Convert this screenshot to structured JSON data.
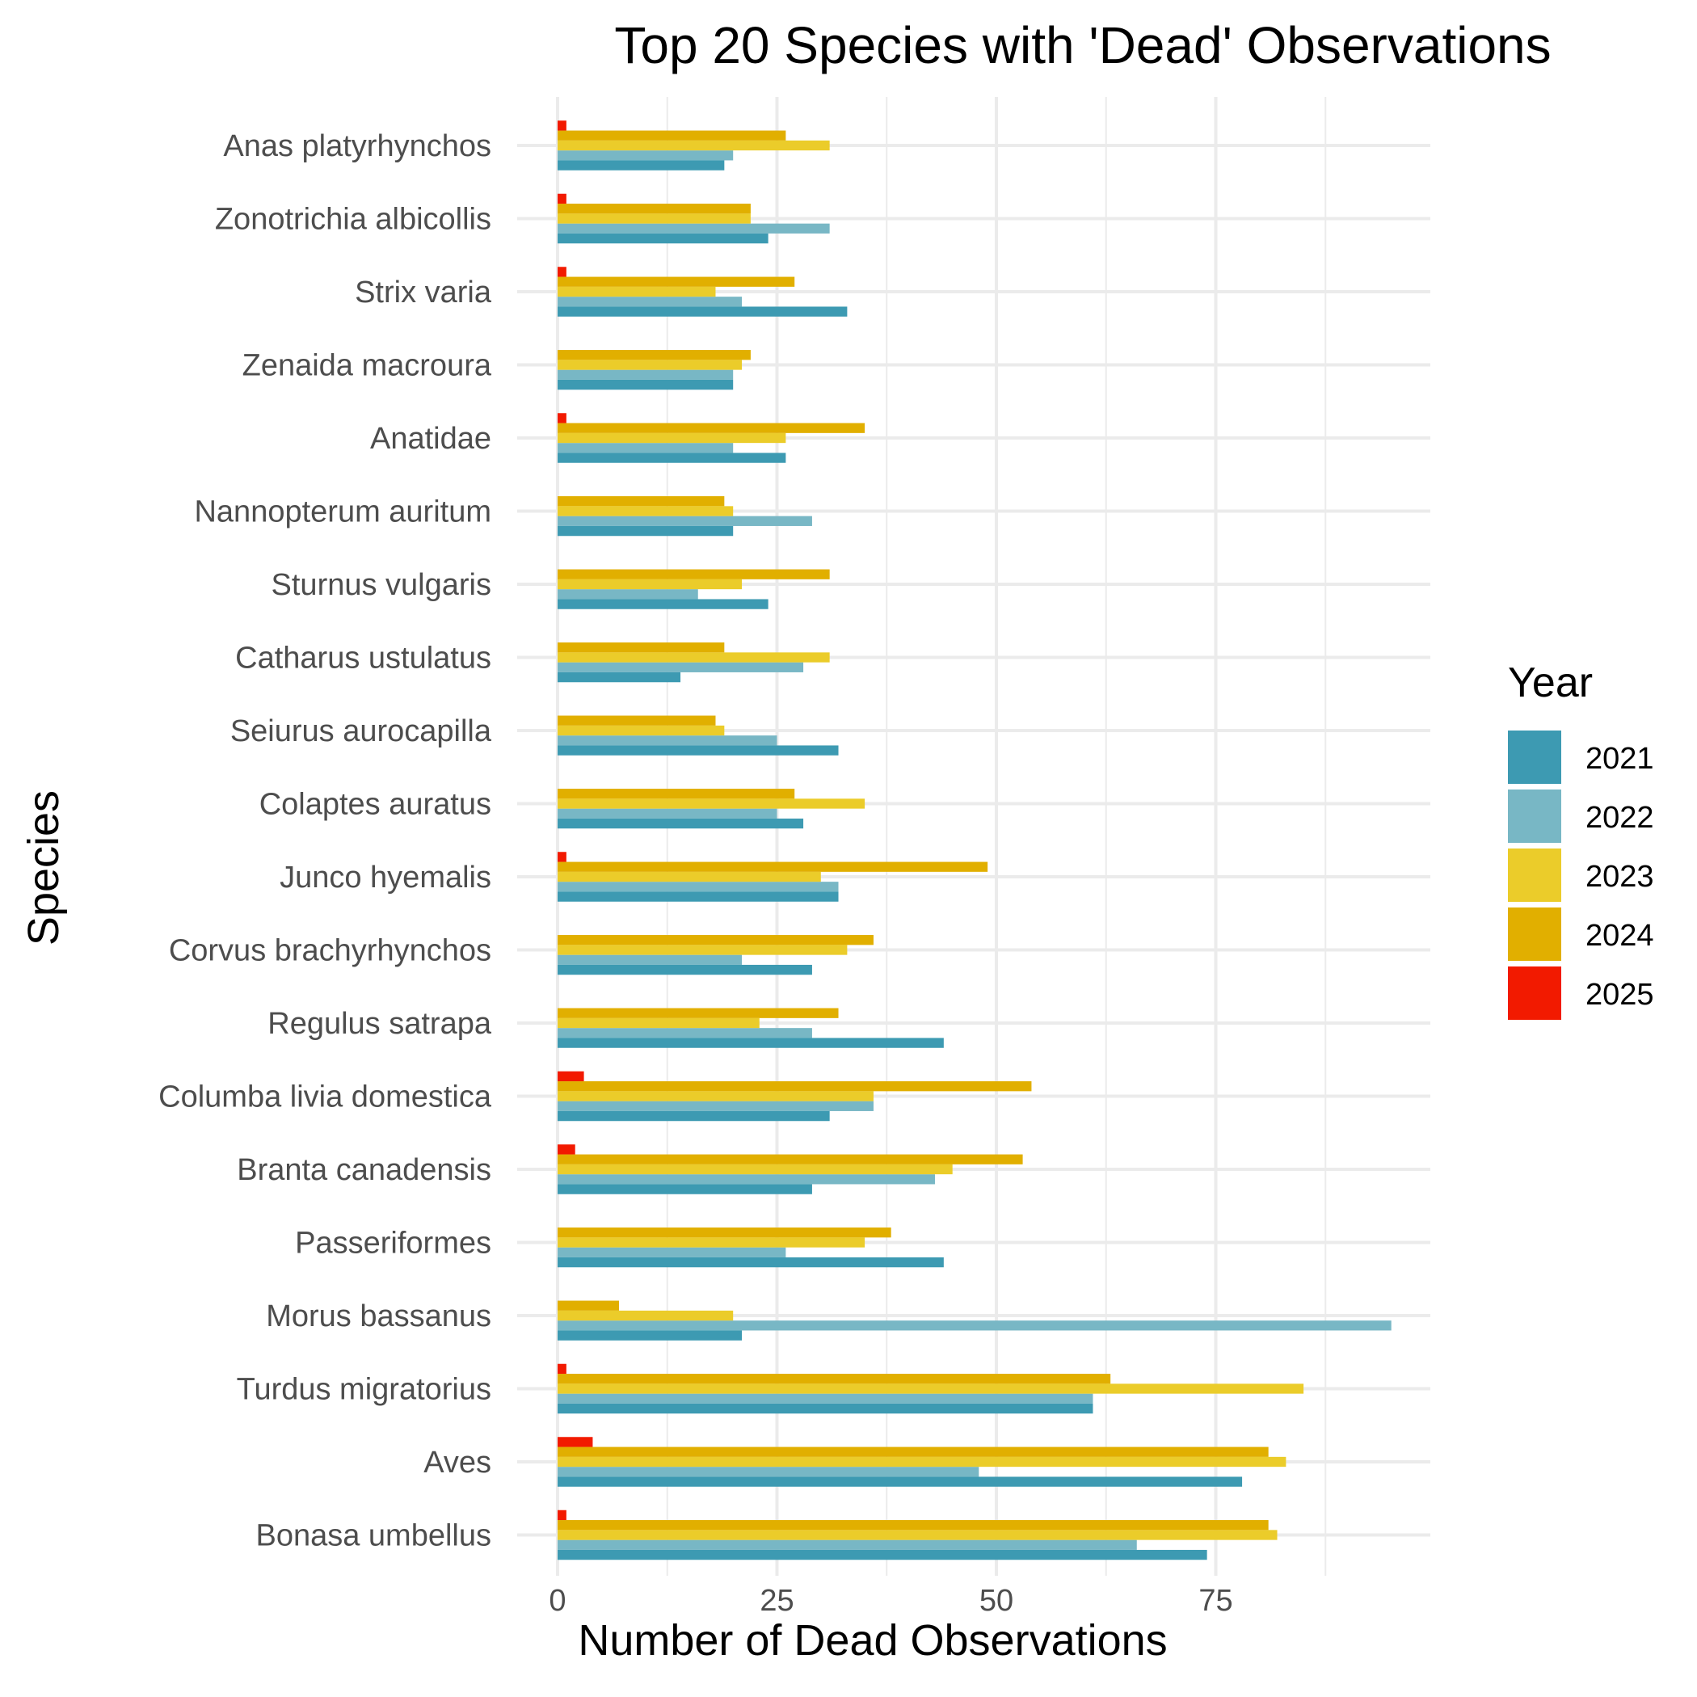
{
  "chart_data": {
    "type": "bar",
    "orientation": "horizontal",
    "title": "Top 20 Species with 'Dead' Observations",
    "xlabel": "Number of Dead Observations",
    "ylabel": "Species",
    "xlim": [
      0,
      100
    ],
    "xticks": [
      0,
      25,
      50,
      75
    ],
    "grid": true,
    "legend": {
      "title": "Year",
      "position": "right"
    },
    "categories": [
      "Anas platyrhynchos",
      "Zonotrichia albicollis",
      "Strix varia",
      "Zenaida macroura",
      "Anatidae",
      "Nannopterum auritum",
      "Sturnus vulgaris",
      "Catharus ustulatus",
      "Seiurus aurocapilla",
      "Colaptes auratus",
      "Junco hyemalis",
      "Corvus brachyrhynchos",
      "Regulus satrapa",
      "Columba livia domestica",
      "Branta canadensis",
      "Passeriformes",
      "Morus bassanus",
      "Turdus migratorius",
      "Aves",
      "Bonasa umbellus"
    ],
    "series": [
      {
        "name": "2021",
        "color": "#3D9AB2",
        "values": [
          19,
          24,
          33,
          20,
          26,
          20,
          24,
          14,
          32,
          28,
          32,
          29,
          44,
          31,
          29,
          44,
          21,
          61,
          78,
          74
        ]
      },
      {
        "name": "2022",
        "color": "#78B7C5",
        "values": [
          20,
          31,
          21,
          20,
          20,
          29,
          16,
          28,
          25,
          25,
          32,
          21,
          29,
          36,
          43,
          26,
          95,
          61,
          48,
          66
        ]
      },
      {
        "name": "2023",
        "color": "#EBCC2A",
        "values": [
          31,
          22,
          18,
          21,
          26,
          20,
          21,
          31,
          19,
          35,
          30,
          33,
          23,
          36,
          45,
          35,
          20,
          85,
          83,
          82
        ]
      },
      {
        "name": "2024",
        "color": "#E1AF00",
        "values": [
          26,
          22,
          27,
          22,
          35,
          19,
          31,
          19,
          18,
          27,
          49,
          36,
          32,
          54,
          53,
          38,
          7,
          63,
          81,
          81
        ]
      },
      {
        "name": "2025",
        "color": "#F21A00",
        "values": [
          1,
          1,
          1,
          0,
          1,
          0,
          0,
          0,
          0,
          0,
          1,
          0,
          0,
          3,
          2,
          0,
          0,
          1,
          4,
          1
        ]
      }
    ]
  }
}
